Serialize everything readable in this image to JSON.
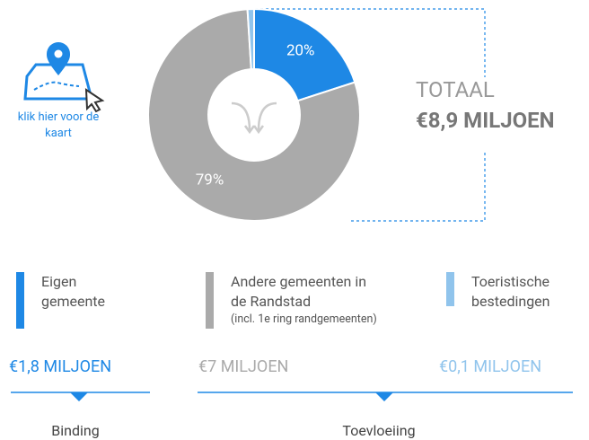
{
  "chart_data": {
    "type": "donut",
    "categories": [
      "Eigen gemeente",
      "Andere gemeenten in de Randstad",
      "Toeristische bestedingen"
    ],
    "values": [
      20,
      79,
      1
    ],
    "value_labels": [
      "20%",
      "79%",
      null
    ],
    "colors": [
      "#1e88e5",
      "#aaaaaa",
      "#90c4ec"
    ],
    "category_notes": [
      null,
      "(incl. 1e ring randgemeenten)",
      null
    ],
    "amounts": [
      "€1,8 MILJOEN",
      "€7 MILJOEN",
      "€0,1 MILJOEN"
    ],
    "total_label": "TOTAAL",
    "total": "€8,9 MILJOEN",
    "groups": [
      "Binding",
      "Toevloeiing"
    ],
    "map_link": "klik hier voor de kaart"
  }
}
